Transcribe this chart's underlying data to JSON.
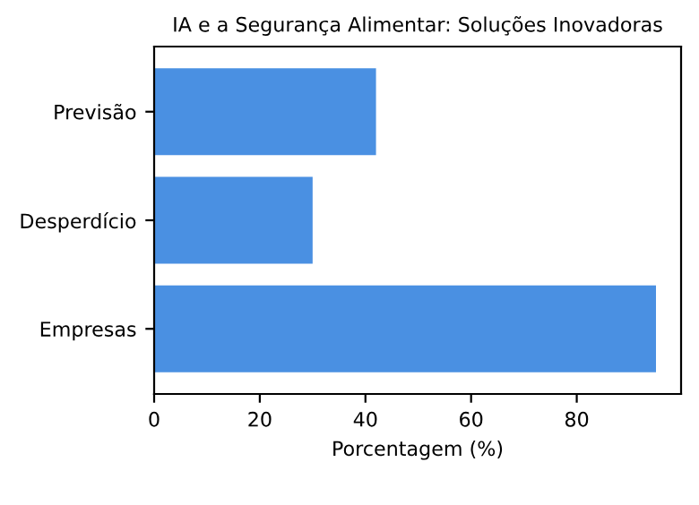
{
  "chart_data": {
    "type": "bar",
    "orientation": "horizontal",
    "title": "IA e a Segurança Alimentar: Soluções Inovadoras",
    "xlabel": "Porcentagem (%)",
    "categories": [
      "Previsão",
      "Desperdício",
      "Empresas"
    ],
    "values": [
      42,
      30,
      95
    ],
    "color": "#4a90e2",
    "xlim": [
      0,
      99.75
    ],
    "xticks": [
      0,
      20,
      40,
      60,
      80
    ],
    "grid": false
  }
}
